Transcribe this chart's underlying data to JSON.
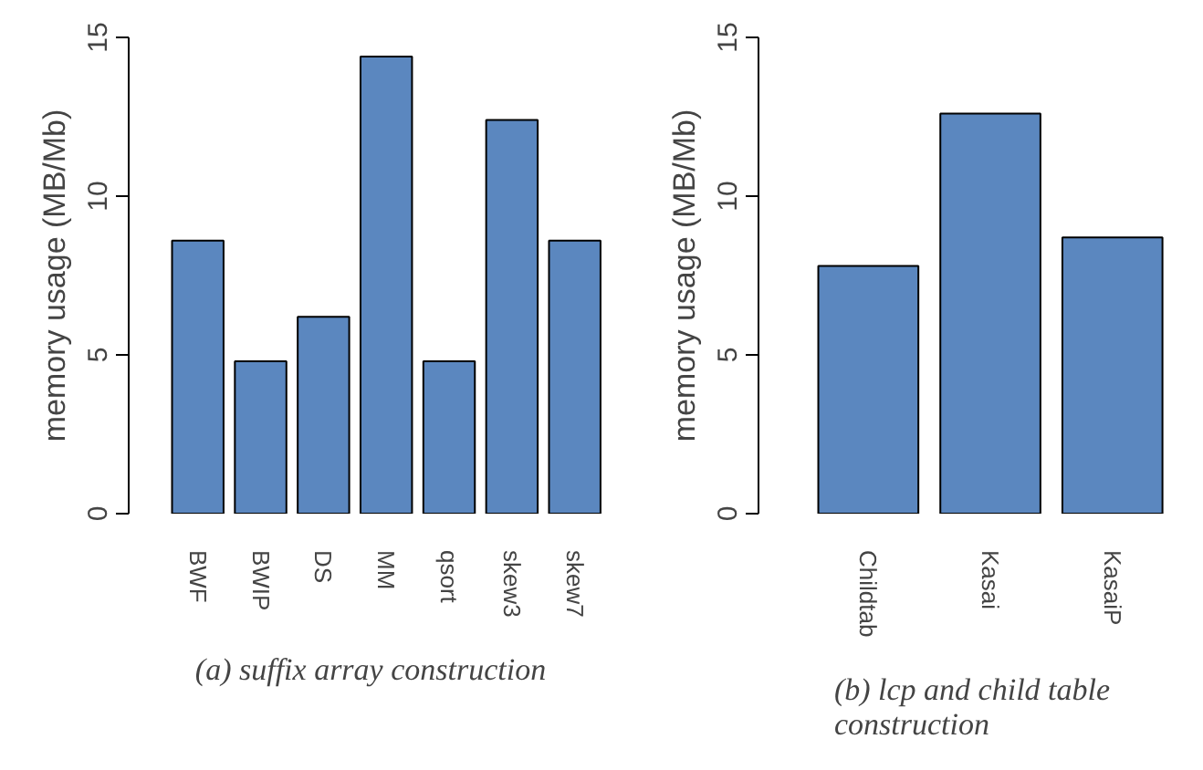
{
  "chart_data": [
    {
      "type": "bar",
      "title": "(a) suffix array construction",
      "ylabel": "memory usage (MB/Mb)",
      "categories": [
        "BWF",
        "BWIP",
        "DS",
        "MM",
        "qsort",
        "skew3",
        "skew7"
      ],
      "values": [
        8.6,
        4.8,
        6.2,
        14.4,
        4.8,
        12.4,
        8.6
      ],
      "color": "#5b87bf",
      "ylim": [
        0,
        15
      ],
      "yticks": [
        0,
        5,
        10,
        15
      ]
    },
    {
      "type": "bar",
      "title": "(b) lcp and child table construction",
      "ylabel": "memory usage (MB/Mb)",
      "categories": [
        "Childtab",
        "Kasai",
        "KasaiP"
      ],
      "values": [
        7.8,
        12.6,
        8.7
      ],
      "color": "#5b87bf",
      "ylim": [
        0,
        15
      ],
      "yticks": [
        0,
        5,
        10,
        15
      ]
    }
  ]
}
